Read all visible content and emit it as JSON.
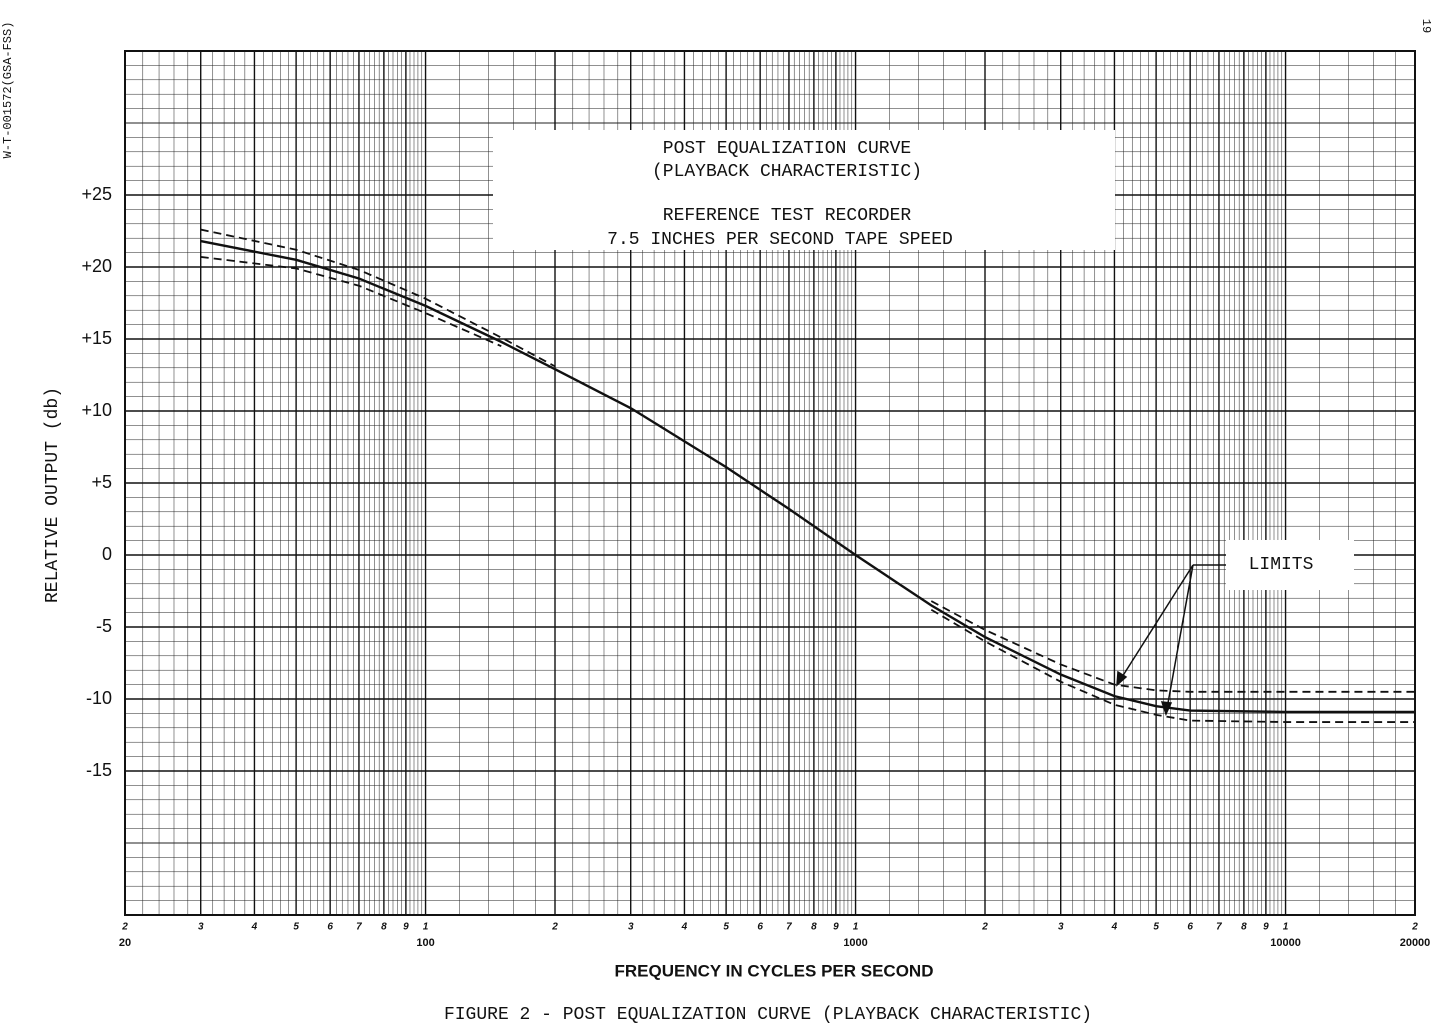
{
  "page": {
    "margin_note": "W-T-001572(GSA-FSS)",
    "page_number": "19",
    "caption": "FIGURE 2 - POST EQUALIZATION CURVE (PLAYBACK CHARACTERISTIC)"
  },
  "chart_data": {
    "type": "line",
    "title": "POST EQUALIZATION CURVE",
    "subtitle": "(PLAYBACK CHARACTERISTIC)",
    "title_notes": [
      "REFERENCE TEST RECORDER",
      "7.5 INCHES PER SECOND TAPE SPEED"
    ],
    "xlabel": "FREQUENCY IN CYCLES PER SECOND",
    "ylabel": "RELATIVE OUTPUT (db)",
    "annotation": "LIMITS",
    "xscale": "log",
    "grid": true,
    "xlim": [
      20,
      20000
    ],
    "ylim": [
      -25,
      35
    ],
    "xticks": [
      {
        "value": 20,
        "label": "2"
      },
      {
        "value": 30,
        "label": "3"
      },
      {
        "value": 40,
        "label": "4"
      },
      {
        "value": 50,
        "label": "5"
      },
      {
        "value": 60,
        "label": "6"
      },
      {
        "value": 70,
        "label": "7"
      },
      {
        "value": 80,
        "label": "8"
      },
      {
        "value": 90,
        "label": "9"
      },
      {
        "value": 100,
        "label": "1"
      },
      {
        "value": 200,
        "label": "2"
      },
      {
        "value": 300,
        "label": "3"
      },
      {
        "value": 400,
        "label": "4"
      },
      {
        "value": 500,
        "label": "5"
      },
      {
        "value": 600,
        "label": "6"
      },
      {
        "value": 700,
        "label": "7"
      },
      {
        "value": 800,
        "label": "8"
      },
      {
        "value": 900,
        "label": "9"
      },
      {
        "value": 1000,
        "label": "1"
      },
      {
        "value": 2000,
        "label": "2"
      },
      {
        "value": 3000,
        "label": "3"
      },
      {
        "value": 4000,
        "label": "4"
      },
      {
        "value": 5000,
        "label": "5"
      },
      {
        "value": 6000,
        "label": "6"
      },
      {
        "value": 7000,
        "label": "7"
      },
      {
        "value": 8000,
        "label": "8"
      },
      {
        "value": 9000,
        "label": "9"
      },
      {
        "value": 10000,
        "label": "1"
      },
      {
        "value": 20000,
        "label": "2"
      }
    ],
    "xtick_decade_labels": [
      20,
      100,
      1000,
      10000,
      20000
    ],
    "yticks": [
      {
        "value": 25,
        "label": "+25"
      },
      {
        "value": 20,
        "label": "+20"
      },
      {
        "value": 15,
        "label": "+15"
      },
      {
        "value": 10,
        "label": "+10"
      },
      {
        "value": 5,
        "label": "+5"
      },
      0,
      -5,
      -10,
      -15
    ],
    "x": [
      30,
      50,
      70,
      100,
      150,
      200,
      300,
      500,
      700,
      1000,
      1500,
      2000,
      3000,
      4000,
      5000,
      6000,
      10000,
      20000
    ],
    "series": [
      {
        "color": "#111111",
        "dash": false,
        "values": [
          21.8,
          20.5,
          19.2,
          17.3,
          14.8,
          12.9,
          10.2,
          6.1,
          3.2,
          0,
          -3.5,
          -5.7,
          -8.3,
          -9.8,
          -10.5,
          -10.8,
          -10.9,
          -10.9
        ]
      },
      {
        "color": "#111111",
        "dash": true,
        "values": [
          22.6,
          21.2,
          19.8,
          17.8,
          15.1,
          13.1,
          null,
          null,
          null,
          null,
          -3.2,
          -5.2,
          -7.6,
          -9.0,
          -9.4,
          -9.5,
          -9.5,
          -9.5
        ]
      },
      {
        "color": "#111111",
        "dash": true,
        "values": [
          20.7,
          19.9,
          18.7,
          16.8,
          14.5,
          null,
          null,
          null,
          null,
          null,
          -3.8,
          -6.0,
          -8.8,
          -10.4,
          -11.1,
          -11.5,
          -11.6,
          -11.6
        ]
      }
    ]
  }
}
